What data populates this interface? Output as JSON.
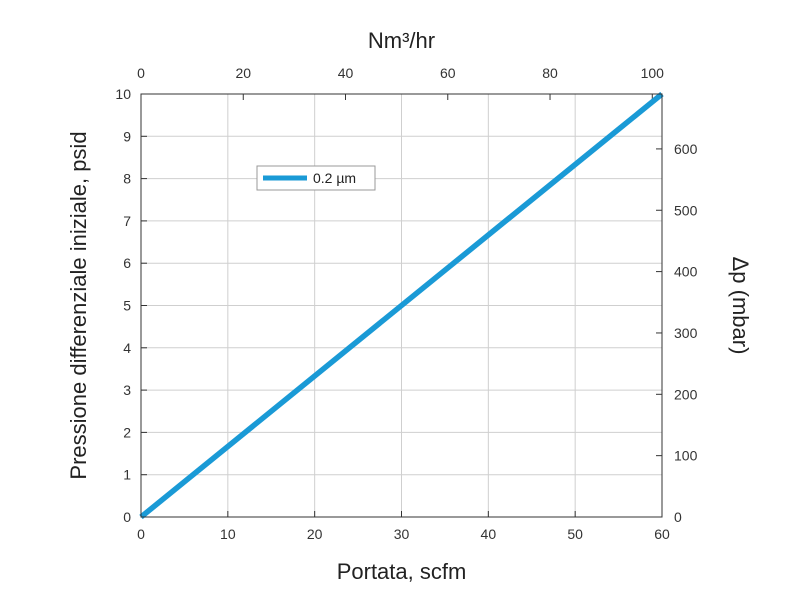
{
  "chart_data": {
    "type": "line",
    "x": [
      0,
      60
    ],
    "series": [
      {
        "name": "0.2  µm",
        "values": [
          0,
          10
        ],
        "color": "#1a9ad6"
      }
    ],
    "xlabel": "Portata, scfm",
    "ylabel": "Pressione differenziale iniziale, psid",
    "xlim": [
      0,
      60
    ],
    "ylim": [
      0,
      10
    ],
    "xticks": [
      0,
      10,
      20,
      30,
      40,
      50,
      60
    ],
    "yticks": [
      0,
      1,
      2,
      3,
      4,
      5,
      6,
      7,
      8,
      9,
      10
    ],
    "secondary_x": {
      "label": "Nm³/hr",
      "lim": [
        0,
        101.9
      ],
      "ticks": [
        0,
        20,
        40,
        60,
        80,
        100
      ]
    },
    "secondary_y": {
      "label": "Δp (mbar)",
      "lim": [
        0,
        689.5
      ],
      "ticks": [
        0,
        100,
        200,
        300,
        400,
        500,
        600
      ]
    },
    "grid": true,
    "legend_position": "upper-left"
  }
}
